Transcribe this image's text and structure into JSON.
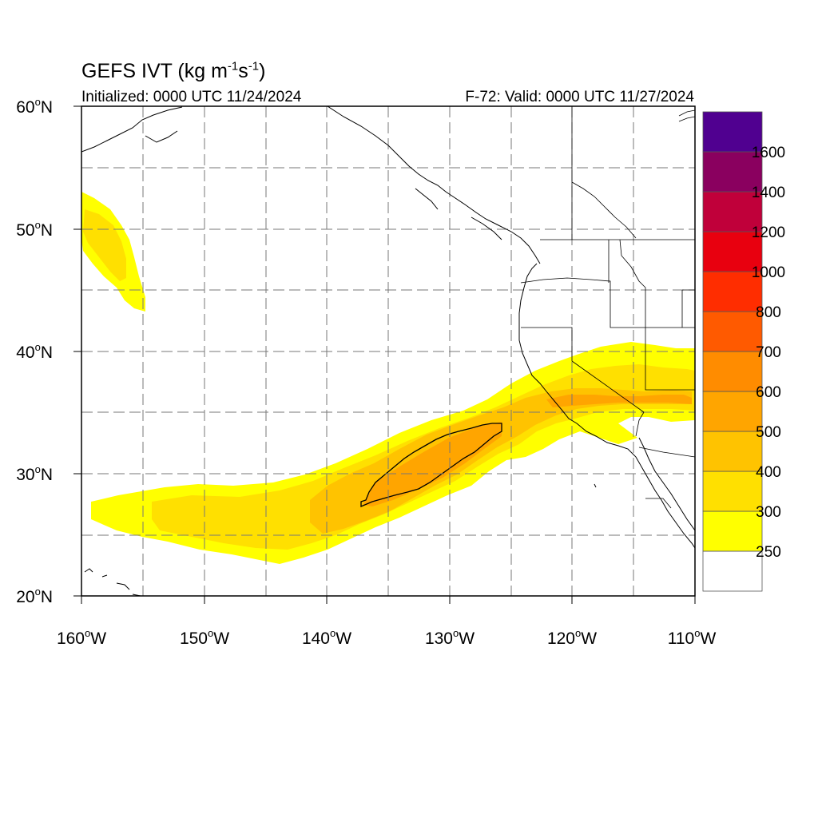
{
  "title": {
    "prefix": "GEFS IVT (kg m",
    "exp1": "-1",
    "mid": "s",
    "exp2": "-1",
    "suffix": ")"
  },
  "initialized": "Initialized: 0000 UTC 11/24/2024",
  "valid": "F-72: Valid: 0000 UTC 11/27/2024",
  "lat_labels": [
    "60",
    "50",
    "40",
    "30",
    "20"
  ],
  "lat_suffix": "N",
  "lon_labels": [
    "160",
    "150",
    "140",
    "130",
    "120",
    "110"
  ],
  "lon_suffix": "W",
  "degree": "o",
  "colorbar": {
    "labels": [
      "250",
      "300",
      "400",
      "500",
      "600",
      "700",
      "800",
      "1000",
      "1200",
      "1400",
      "1600"
    ],
    "colors": [
      "#ffffff",
      "#ffff00",
      "#ffe000",
      "#ffc300",
      "#ffa500",
      "#ff8c00",
      "#ff5a00",
      "#ff2d00",
      "#e8000f",
      "#c0003a",
      "#8a005f",
      "#500090"
    ]
  },
  "colors": {
    "grid": "#777777",
    "coast": "#000000",
    "contour": "#000000"
  }
}
